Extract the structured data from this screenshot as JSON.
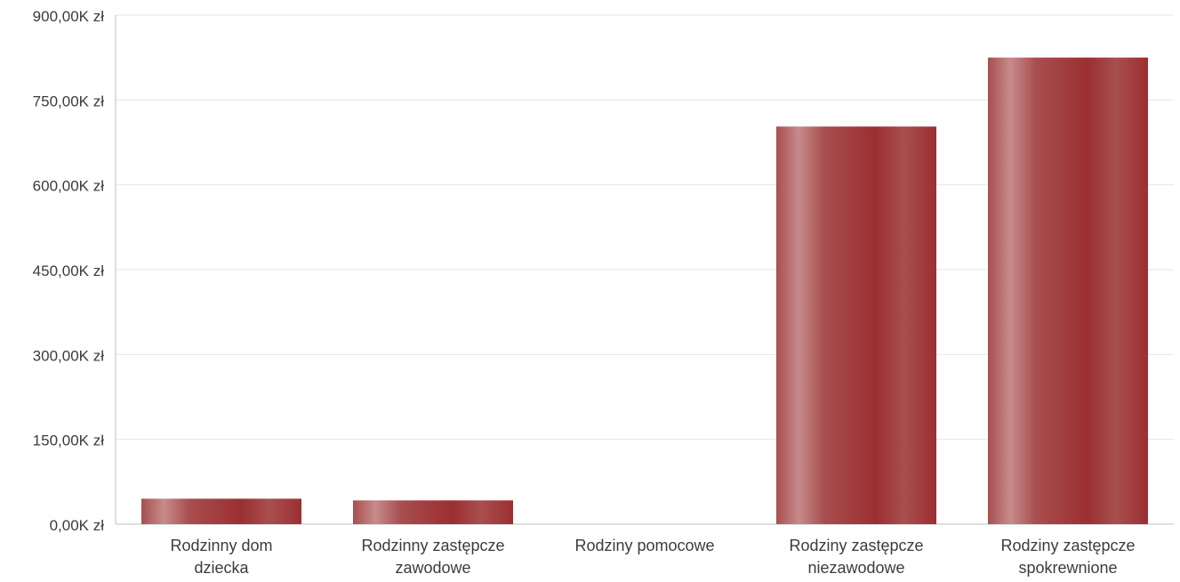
{
  "chart_data": {
    "type": "bar",
    "title": "",
    "xlabel": "",
    "ylabel": "",
    "categories": [
      [
        "Rodzinny dom",
        "dziecka"
      ],
      [
        "Rodzinny zastępcze",
        "zawodowe"
      ],
      [
        "Rodziny pomocowe"
      ],
      [
        "Rodziny zastępcze",
        "niezawodowe"
      ],
      [
        "Rodziny zastępcze",
        "spokrewnione"
      ]
    ],
    "values": [
      45000,
      42000,
      0,
      703000,
      825000
    ],
    "ylim": [
      0,
      900000
    ],
    "yticks": [
      0,
      150000,
      300000,
      450000,
      600000,
      750000,
      900000
    ],
    "ytick_labels": [
      "0,00K zł",
      "150,00K zł",
      "300,00K zł",
      "450,00K zł",
      "600,00K zł",
      "750,00K zł",
      "900,00K zł"
    ],
    "grid": true,
    "legend": "none",
    "colors": {
      "bar_dark": "#9b2f31",
      "bar_light": "#c68b8b",
      "bar_mid": "#a84e4f",
      "gridline": "#e6e6e6",
      "axis": "#bfbfbf",
      "text": "#3c3c3c"
    }
  }
}
